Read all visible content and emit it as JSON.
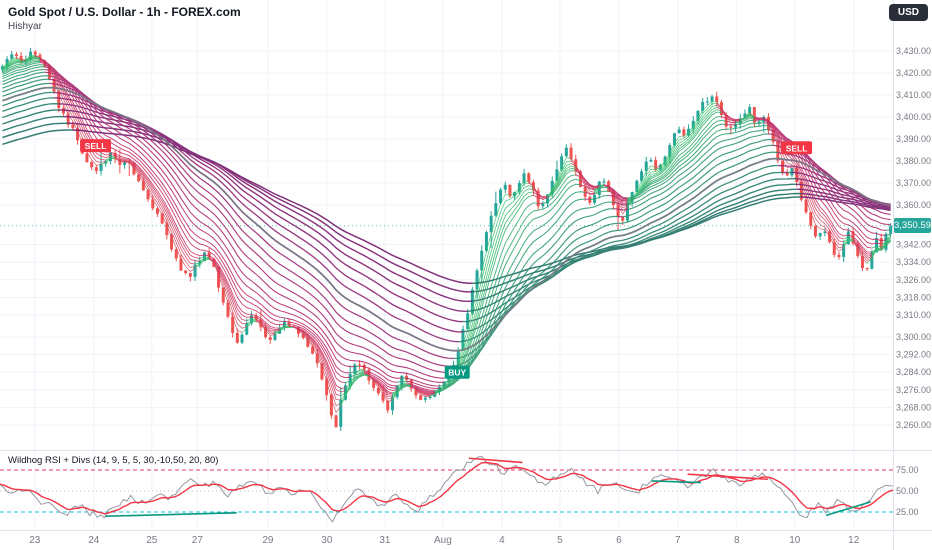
{
  "header": {
    "title": "Gold Spot / U.S. Dollar - 1h - FOREX.com",
    "byline": "Hishyar",
    "currency_button": "USD"
  },
  "price_axis": {
    "last_price": "3,350.59",
    "last_price_value": 3350.59,
    "labels": [
      {
        "p": 3430,
        "t": "3,430.00"
      },
      {
        "p": 3420,
        "t": "3,420.00"
      },
      {
        "p": 3410,
        "t": "3,410.00"
      },
      {
        "p": 3400,
        "t": "3,400.00"
      },
      {
        "p": 3390,
        "t": "3,390.00"
      },
      {
        "p": 3380,
        "t": "3,380.00"
      },
      {
        "p": 3370,
        "t": "3,370.00"
      },
      {
        "p": 3360,
        "t": "3,360.00"
      },
      {
        "p": 3342,
        "t": "3,342.00"
      },
      {
        "p": 3334,
        "t": "3,334.00"
      },
      {
        "p": 3326,
        "t": "3,326.00"
      },
      {
        "p": 3318,
        "t": "3,318.00"
      },
      {
        "p": 3310,
        "t": "3,310.00"
      },
      {
        "p": 3300,
        "t": "3,300.00"
      },
      {
        "p": 3292,
        "t": "3,292.00"
      },
      {
        "p": 3284,
        "t": "3,284.00"
      },
      {
        "p": 3276,
        "t": "3,276.00"
      },
      {
        "p": 3268,
        "t": "3,268.00"
      },
      {
        "p": 3260,
        "t": "3,260.00"
      }
    ]
  },
  "time_axis": {
    "labels": [
      [
        "23",
        0.039
      ],
      [
        "24",
        0.105
      ],
      [
        "25",
        0.17
      ],
      [
        "27",
        0.221
      ],
      [
        "29",
        0.3
      ],
      [
        "30",
        0.366
      ],
      [
        "31",
        0.431
      ],
      [
        "Aug",
        0.496
      ],
      [
        "4",
        0.562
      ],
      [
        "5",
        0.627
      ],
      [
        "6",
        0.693
      ],
      [
        "7",
        0.759
      ],
      [
        "8",
        0.825
      ],
      [
        "10",
        0.89
      ],
      [
        "12",
        0.956
      ]
    ]
  },
  "markers": [
    {
      "type": "sell",
      "label": "SELL",
      "x": 0.107,
      "price": 3387
    },
    {
      "type": "buy",
      "label": "BUY",
      "x": 0.512,
      "price": 3284
    },
    {
      "type": "sell",
      "label": "SELL",
      "x": 0.892,
      "price": 3386
    }
  ],
  "colors": {
    "up": "#26a69a",
    "down": "#ef5350",
    "sell": "#f23645",
    "buy": "#089981",
    "last_price": "#26a69a",
    "grid": "#f0f3fa",
    "axis_text": "#787b86",
    "gray_ma": "#787b86",
    "rsi_line": "#9598a1",
    "rsi_signal": "#f23645",
    "level_magenta": "#e91e63",
    "level_cyan": "#00bcd4",
    "level_mid": "#b2b5be",
    "divergence_green": "#089981",
    "divergence_red": "#f23645"
  },
  "chart_data": {
    "type": "candlestick",
    "symbol": "Gold Spot / U.S. Dollar",
    "timeframe": "1h",
    "exchange": "FOREX.com",
    "price_range": [
      3255,
      3435
    ],
    "candle_count": 190,
    "gray_period": 50,
    "ribbon_periods": [
      3,
      4,
      5,
      6,
      7,
      8,
      10,
      12,
      14,
      17,
      20,
      24,
      28,
      33,
      38,
      44,
      50,
      57,
      65,
      74,
      84,
      95,
      107,
      120
    ],
    "price_path": [
      [
        0.0,
        3424
      ],
      [
        0.01,
        3428
      ],
      [
        0.022,
        3425
      ],
      [
        0.034,
        3430
      ],
      [
        0.046,
        3424
      ],
      [
        0.056,
        3415
      ],
      [
        0.064,
        3404
      ],
      [
        0.072,
        3398
      ],
      [
        0.08,
        3394
      ],
      [
        0.088,
        3386
      ],
      [
        0.097,
        3379
      ],
      [
        0.106,
        3375
      ],
      [
        0.114,
        3380
      ],
      [
        0.123,
        3384
      ],
      [
        0.131,
        3377
      ],
      [
        0.14,
        3381
      ],
      [
        0.15,
        3372
      ],
      [
        0.16,
        3366
      ],
      [
        0.17,
        3359
      ],
      [
        0.18,
        3352
      ],
      [
        0.19,
        3341
      ],
      [
        0.2,
        3331
      ],
      [
        0.21,
        3327
      ],
      [
        0.22,
        3334
      ],
      [
        0.229,
        3339
      ],
      [
        0.238,
        3331
      ],
      [
        0.248,
        3317
      ],
      [
        0.258,
        3304
      ],
      [
        0.266,
        3297
      ],
      [
        0.274,
        3306
      ],
      [
        0.282,
        3311
      ],
      [
        0.291,
        3305
      ],
      [
        0.3,
        3298
      ],
      [
        0.31,
        3303
      ],
      [
        0.319,
        3307
      ],
      [
        0.329,
        3303
      ],
      [
        0.339,
        3299
      ],
      [
        0.349,
        3293
      ],
      [
        0.358,
        3284
      ],
      [
        0.367,
        3270
      ],
      [
        0.374,
        3257
      ],
      [
        0.381,
        3271
      ],
      [
        0.389,
        3281
      ],
      [
        0.397,
        3288
      ],
      [
        0.406,
        3285
      ],
      [
        0.416,
        3279
      ],
      [
        0.426,
        3272
      ],
      [
        0.435,
        3267
      ],
      [
        0.443,
        3276
      ],
      [
        0.452,
        3283
      ],
      [
        0.461,
        3277
      ],
      [
        0.47,
        3271
      ],
      [
        0.48,
        3272
      ],
      [
        0.49,
        3276
      ],
      [
        0.5,
        3280
      ],
      [
        0.508,
        3288
      ],
      [
        0.516,
        3298
      ],
      [
        0.524,
        3312
      ],
      [
        0.532,
        3326
      ],
      [
        0.54,
        3340
      ],
      [
        0.548,
        3353
      ],
      [
        0.556,
        3362
      ],
      [
        0.564,
        3370
      ],
      [
        0.572,
        3363
      ],
      [
        0.58,
        3368
      ],
      [
        0.588,
        3376
      ],
      [
        0.596,
        3368
      ],
      [
        0.604,
        3358
      ],
      [
        0.612,
        3364
      ],
      [
        0.62,
        3372
      ],
      [
        0.628,
        3381
      ],
      [
        0.636,
        3386
      ],
      [
        0.644,
        3377
      ],
      [
        0.652,
        3368
      ],
      [
        0.66,
        3359
      ],
      [
        0.668,
        3366
      ],
      [
        0.676,
        3373
      ],
      [
        0.684,
        3365
      ],
      [
        0.692,
        3356
      ],
      [
        0.698,
        3353
      ],
      [
        0.705,
        3362
      ],
      [
        0.713,
        3371
      ],
      [
        0.721,
        3377
      ],
      [
        0.729,
        3382
      ],
      [
        0.737,
        3375
      ],
      [
        0.745,
        3382
      ],
      [
        0.753,
        3390
      ],
      [
        0.761,
        3396
      ],
      [
        0.769,
        3391
      ],
      [
        0.777,
        3398
      ],
      [
        0.785,
        3404
      ],
      [
        0.793,
        3408
      ],
      [
        0.801,
        3409
      ],
      [
        0.809,
        3401
      ],
      [
        0.817,
        3393
      ],
      [
        0.825,
        3397
      ],
      [
        0.833,
        3401
      ],
      [
        0.841,
        3404
      ],
      [
        0.849,
        3396
      ],
      [
        0.857,
        3401
      ],
      [
        0.863,
        3394
      ],
      [
        0.869,
        3386
      ],
      [
        0.875,
        3378
      ],
      [
        0.881,
        3372
      ],
      [
        0.887,
        3378
      ],
      [
        0.893,
        3371
      ],
      [
        0.899,
        3363
      ],
      [
        0.905,
        3356
      ],
      [
        0.911,
        3349
      ],
      [
        0.917,
        3343
      ],
      [
        0.923,
        3350
      ],
      [
        0.929,
        3344
      ],
      [
        0.935,
        3339
      ],
      [
        0.941,
        3335
      ],
      [
        0.947,
        3343
      ],
      [
        0.953,
        3349
      ],
      [
        0.959,
        3341
      ],
      [
        0.965,
        3334
      ],
      [
        0.971,
        3328
      ],
      [
        0.977,
        3337
      ],
      [
        0.983,
        3345
      ],
      [
        0.989,
        3340
      ],
      [
        0.995,
        3347
      ],
      [
        1.0,
        3350.59
      ]
    ],
    "indicator": {
      "name": "Wildhog RSI + Divs (14, 9, 5, 5, 30,-10,50, 20, 80)",
      "range": [
        0,
        100
      ],
      "levels": [
        {
          "v": 75,
          "t": "75.00",
          "style": "magenta"
        },
        {
          "v": 50,
          "t": "50.00",
          "style": "mid"
        },
        {
          "v": 25,
          "t": "25.00",
          "style": "cyan"
        }
      ],
      "rsi": [
        [
          0.0,
          56
        ],
        [
          0.015,
          47
        ],
        [
          0.03,
          54
        ],
        [
          0.045,
          38
        ],
        [
          0.06,
          30
        ],
        [
          0.075,
          24
        ],
        [
          0.09,
          33
        ],
        [
          0.1,
          24
        ],
        [
          0.115,
          20
        ],
        [
          0.13,
          30
        ],
        [
          0.145,
          43
        ],
        [
          0.16,
          36
        ],
        [
          0.175,
          47
        ],
        [
          0.19,
          40
        ],
        [
          0.2,
          52
        ],
        [
          0.215,
          64
        ],
        [
          0.228,
          55
        ],
        [
          0.24,
          62
        ],
        [
          0.255,
          44
        ],
        [
          0.27,
          56
        ],
        [
          0.285,
          62
        ],
        [
          0.3,
          47
        ],
        [
          0.315,
          57
        ],
        [
          0.33,
          46
        ],
        [
          0.345,
          52
        ],
        [
          0.36,
          32
        ],
        [
          0.372,
          14
        ],
        [
          0.385,
          32
        ],
        [
          0.4,
          53
        ],
        [
          0.413,
          43
        ],
        [
          0.428,
          30
        ],
        [
          0.443,
          45
        ],
        [
          0.458,
          34
        ],
        [
          0.468,
          27
        ],
        [
          0.48,
          40
        ],
        [
          0.495,
          57
        ],
        [
          0.51,
          72
        ],
        [
          0.525,
          84
        ],
        [
          0.54,
          90
        ],
        [
          0.553,
          80
        ],
        [
          0.565,
          71
        ],
        [
          0.58,
          79
        ],
        [
          0.595,
          66
        ],
        [
          0.61,
          56
        ],
        [
          0.625,
          70
        ],
        [
          0.64,
          77
        ],
        [
          0.655,
          61
        ],
        [
          0.67,
          50
        ],
        [
          0.685,
          62
        ],
        [
          0.7,
          53
        ],
        [
          0.71,
          45
        ],
        [
          0.725,
          61
        ],
        [
          0.74,
          70
        ],
        [
          0.755,
          62
        ],
        [
          0.77,
          55
        ],
        [
          0.785,
          67
        ],
        [
          0.8,
          74
        ],
        [
          0.815,
          63
        ],
        [
          0.828,
          55
        ],
        [
          0.84,
          67
        ],
        [
          0.855,
          71
        ],
        [
          0.87,
          58
        ],
        [
          0.882,
          40
        ],
        [
          0.893,
          26
        ],
        [
          0.903,
          20
        ],
        [
          0.915,
          34
        ],
        [
          0.925,
          27
        ],
        [
          0.94,
          39
        ],
        [
          0.95,
          29
        ],
        [
          0.96,
          24
        ],
        [
          0.97,
          37
        ],
        [
          0.98,
          48
        ],
        [
          0.99,
          53
        ],
        [
          1.0,
          57
        ]
      ],
      "green_segments": [
        [
          0.118,
          20,
          0.265,
          24
        ],
        [
          0.73,
          62,
          0.785,
          60
        ],
        [
          0.925,
          21,
          0.975,
          37
        ]
      ],
      "red_segments": [
        [
          0.525,
          89,
          0.585,
          84
        ],
        [
          0.77,
          70,
          0.86,
          64
        ]
      ]
    }
  }
}
